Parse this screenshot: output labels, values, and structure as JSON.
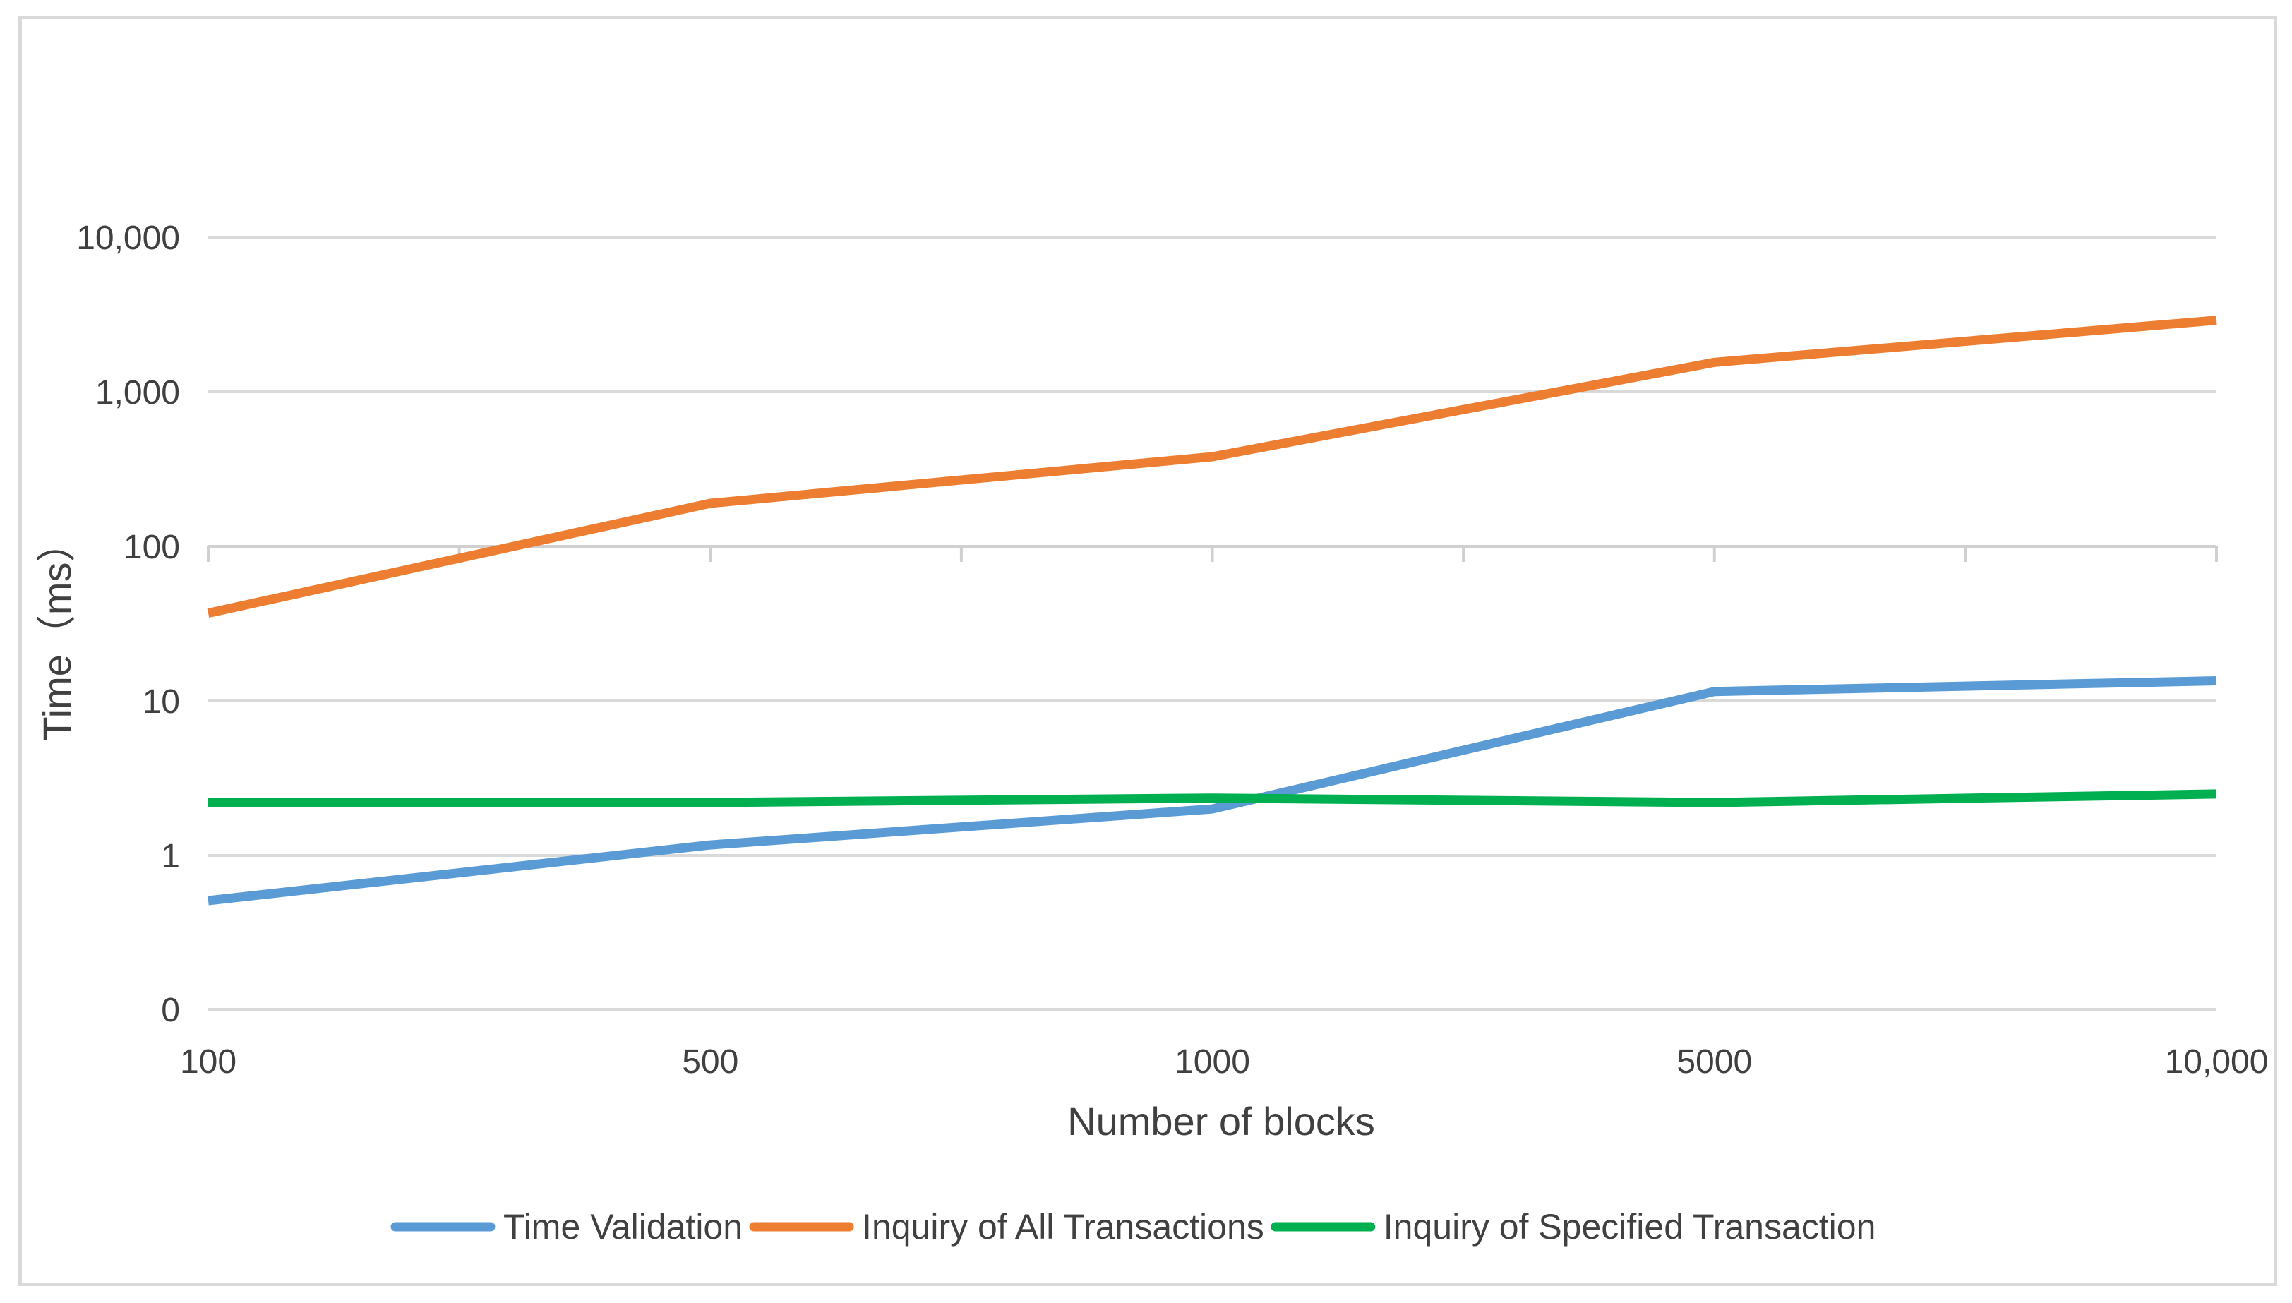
{
  "chart_data": {
    "type": "line",
    "title": "",
    "xlabel": "Number of blocks",
    "ylabel": "Time（ms）",
    "x_scale": "categorical",
    "y_scale": "log",
    "categories": [
      "100",
      "500",
      "1000",
      "5000",
      "10,000"
    ],
    "y_ticks": [
      {
        "value": 0,
        "label": "0"
      },
      {
        "value": 1,
        "label": "1"
      },
      {
        "value": 10,
        "label": "10"
      },
      {
        "value": 100,
        "label": "100"
      },
      {
        "value": 1000,
        "label": "1,000"
      },
      {
        "value": 10000,
        "label": "10,000"
      }
    ],
    "grid": true,
    "legend_position": "bottom",
    "series": [
      {
        "name": "Time Validation",
        "color": "#5b9bd5",
        "values": [
          0.51,
          1.17,
          2.0,
          11.5,
          13.5
        ]
      },
      {
        "name": "Inquiry of All Transactions",
        "color": "#ed7d31",
        "values": [
          37,
          190,
          380,
          1550,
          2900
        ]
      },
      {
        "name": "Inquiry of Specified Transaction",
        "color": "#00b050",
        "values": [
          2.2,
          2.2,
          2.35,
          2.2,
          2.5
        ]
      }
    ]
  }
}
